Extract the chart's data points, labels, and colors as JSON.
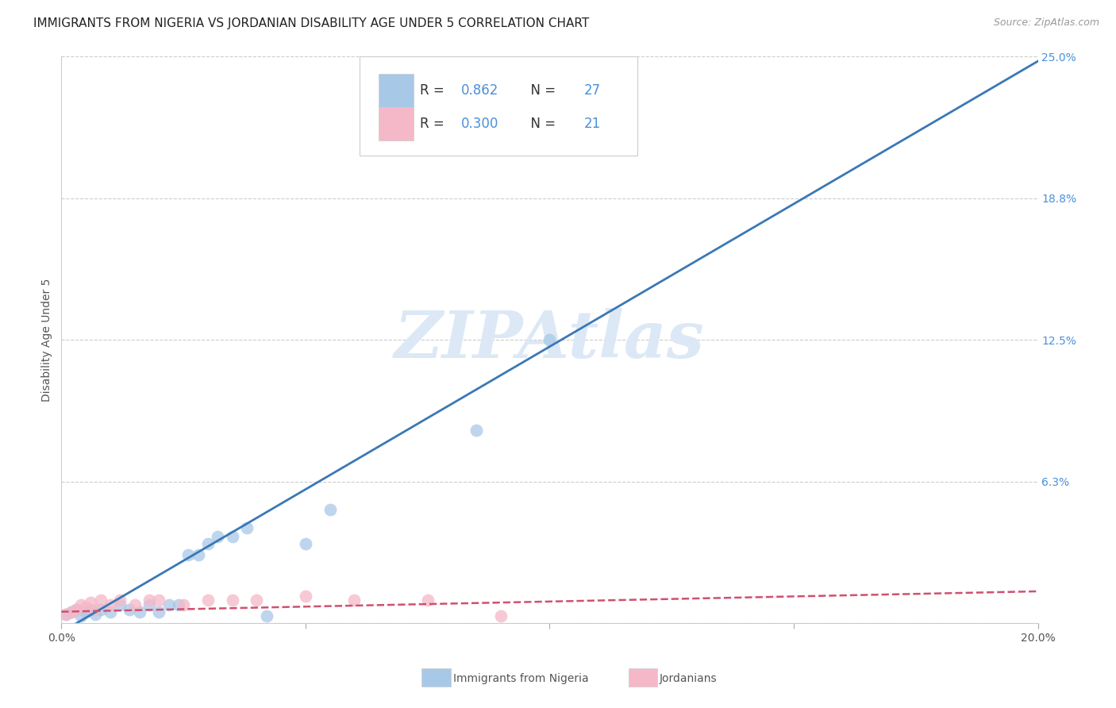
{
  "title": "IMMIGRANTS FROM NIGERIA VS JORDANIAN DISABILITY AGE UNDER 5 CORRELATION CHART",
  "source": "Source: ZipAtlas.com",
  "ylabel": "Disability Age Under 5",
  "xlim": [
    0,
    0.2
  ],
  "ylim": [
    0,
    0.25
  ],
  "xticks": [
    0.0,
    0.05,
    0.1,
    0.15,
    0.2
  ],
  "xticklabels": [
    "0.0%",
    "",
    "",
    "",
    "20.0%"
  ],
  "yticks": [
    0.0,
    0.0625,
    0.125,
    0.1875,
    0.25
  ],
  "yticklabels": [
    "",
    "6.3%",
    "12.5%",
    "18.8%",
    "25.0%"
  ],
  "nigeria_x": [
    0.001,
    0.002,
    0.003,
    0.004,
    0.005,
    0.006,
    0.007,
    0.008,
    0.01,
    0.012,
    0.014,
    0.016,
    0.018,
    0.02,
    0.022,
    0.024,
    0.026,
    0.028,
    0.03,
    0.032,
    0.035,
    0.038,
    0.042,
    0.05,
    0.055,
    0.1,
    0.085
  ],
  "nigeria_y": [
    0.004,
    0.005,
    0.006,
    0.003,
    0.005,
    0.006,
    0.004,
    0.006,
    0.005,
    0.008,
    0.006,
    0.005,
    0.008,
    0.005,
    0.008,
    0.008,
    0.03,
    0.03,
    0.035,
    0.038,
    0.038,
    0.042,
    0.003,
    0.035,
    0.05,
    0.125,
    0.085
  ],
  "jordan_x": [
    0.001,
    0.002,
    0.003,
    0.004,
    0.005,
    0.006,
    0.007,
    0.008,
    0.01,
    0.012,
    0.015,
    0.018,
    0.02,
    0.025,
    0.03,
    0.035,
    0.04,
    0.05,
    0.06,
    0.075,
    0.09
  ],
  "jordan_y": [
    0.004,
    0.005,
    0.006,
    0.008,
    0.007,
    0.009,
    0.006,
    0.01,
    0.008,
    0.01,
    0.008,
    0.01,
    0.01,
    0.008,
    0.01,
    0.01,
    0.01,
    0.012,
    0.01,
    0.01,
    0.003
  ],
  "nigeria_R": 0.862,
  "nigeria_N": 27,
  "jordan_R": 0.3,
  "jordan_N": 21,
  "nigeria_color": "#a8c8e8",
  "nigeria_line_color": "#3a78b5",
  "jordan_color": "#f5b8c8",
  "jordan_line_color": "#d05070",
  "background_color": "#ffffff",
  "grid_color": "#cccccc",
  "title_fontsize": 11,
  "axis_label_fontsize": 10,
  "tick_fontsize": 10,
  "watermark_text": "ZIPAtlas",
  "watermark_color": "#dce8f5",
  "nig_line_x0": 0.0,
  "nig_line_y0": -0.004,
  "nig_line_x1": 0.2,
  "nig_line_y1": 0.248,
  "jor_line_x0": 0.0,
  "jor_line_y0": 0.005,
  "jor_line_x1": 0.2,
  "jor_line_y1": 0.014
}
